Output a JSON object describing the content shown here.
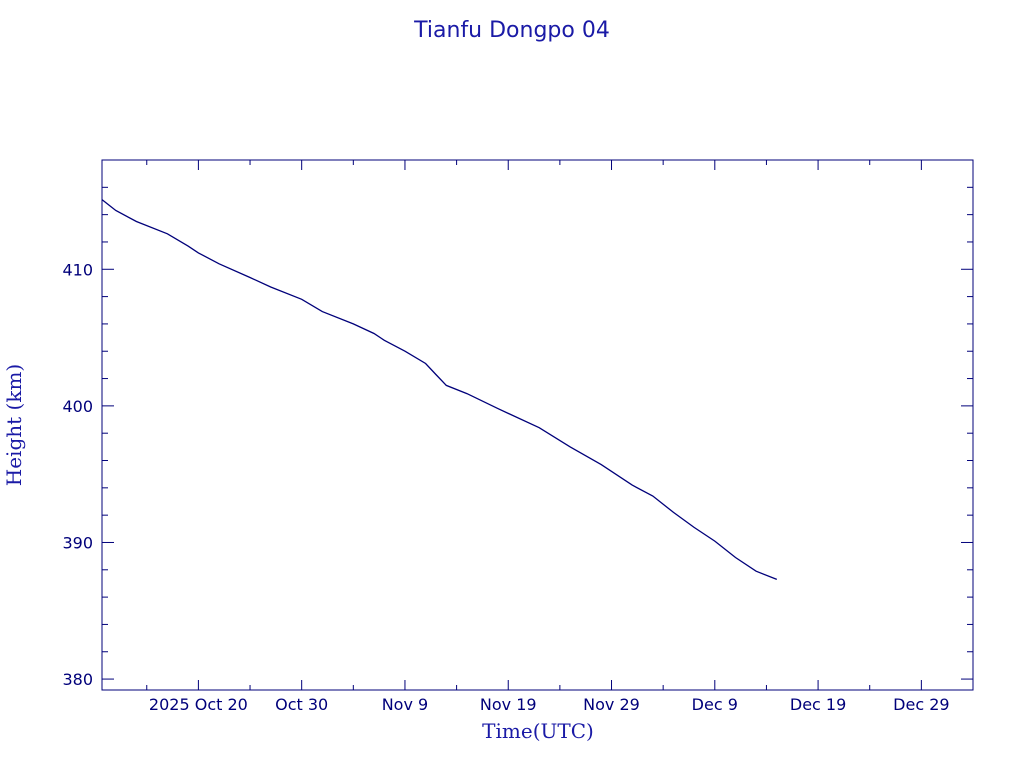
{
  "chart_data": {
    "type": "line",
    "title": "Tianfu Dongpo 04",
    "xlabel": "Time(UTC)",
    "ylabel": "Height (km)",
    "xlim": [
      "2025-10-10T16:00",
      "2026-01-03"
    ],
    "ylim": [
      379.2,
      418
    ],
    "colors": {
      "axis": "#00007a",
      "line": "#00007a",
      "text": "#1a1aa6"
    },
    "grid": false,
    "x_ticks": [
      {
        "date": "2025-10-20",
        "label": "2025 Oct 20"
      },
      {
        "date": "2025-10-30",
        "label": "Oct 30"
      },
      {
        "date": "2025-11-09",
        "label": "Nov  9"
      },
      {
        "date": "2025-11-19",
        "label": "Nov 19"
      },
      {
        "date": "2025-11-29",
        "label": "Nov 29"
      },
      {
        "date": "2025-12-09",
        "label": "Dec  9"
      },
      {
        "date": "2025-12-19",
        "label": "Dec 19"
      },
      {
        "date": "2025-12-29",
        "label": "Dec 29"
      }
    ],
    "y_ticks": [
      {
        "value": 380,
        "label": "380"
      },
      {
        "value": 390,
        "label": "390"
      },
      {
        "value": 400,
        "label": "400"
      },
      {
        "value": 410,
        "label": "410"
      }
    ],
    "series": [
      {
        "x": [
          "2025-10-10T16:00",
          "2025-10-12",
          "2025-10-14",
          "2025-10-17",
          "2025-10-19",
          "2025-10-20",
          "2025-10-22",
          "2025-10-25",
          "2025-10-27",
          "2025-10-30",
          "2025-11-01",
          "2025-11-04",
          "2025-11-06",
          "2025-11-07",
          "2025-11-09",
          "2025-11-11",
          "2025-11-12",
          "2025-11-13",
          "2025-11-15",
          "2025-11-18",
          "2025-11-22",
          "2025-11-25",
          "2025-11-28",
          "2025-12-01",
          "2025-12-03",
          "2025-12-05",
          "2025-12-07",
          "2025-12-09",
          "2025-12-11",
          "2025-12-13",
          "2025-12-15"
        ],
        "y": [
          415.1,
          414.3,
          413.5,
          412.6,
          411.7,
          411.2,
          410.4,
          409.4,
          408.7,
          407.8,
          406.9,
          406.0,
          405.3,
          404.8,
          404.0,
          403.1,
          402.3,
          401.5,
          400.9,
          399.8,
          398.4,
          397.0,
          395.7,
          394.2,
          393.4,
          392.2,
          391.1,
          390.1,
          388.9,
          387.9,
          387.3
        ]
      }
    ]
  }
}
